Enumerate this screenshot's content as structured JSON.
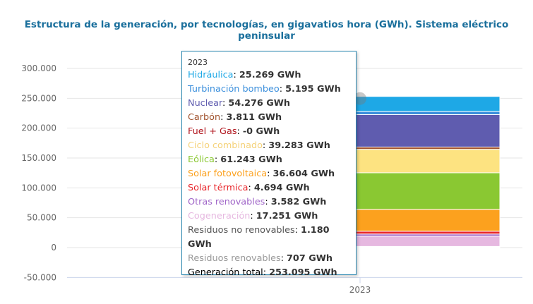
{
  "chart_data": {
    "type": "bar",
    "stacked": true,
    "title": "Estructura de la generación, por tecnologías, en gigavatios hora (GWh). Sistema eléctrico peninsular",
    "categories": [
      "2023"
    ],
    "ylim": [
      -50000,
      300000
    ],
    "yticks": [
      300000,
      250000,
      200000,
      150000,
      100000,
      50000,
      0,
      -50000
    ],
    "ytick_labels": [
      "300.000",
      "250.000",
      "200.000",
      "150.000",
      "100.000",
      "50.000",
      "0",
      "-50.000"
    ],
    "grid": true,
    "unit": "GWh",
    "series": [
      {
        "name": "Hidráulica",
        "values": [
          25269
        ],
        "label": "25.269 GWh",
        "color": "#1ea8e6"
      },
      {
        "name": "Turbinación bombeo",
        "values": [
          5195
        ],
        "label": "5.195 GWh",
        "color": "#3b8fdc"
      },
      {
        "name": "Nuclear",
        "values": [
          54276
        ],
        "label": "54.276 GWh",
        "color": "#5f5caf"
      },
      {
        "name": "Carbón",
        "values": [
          3811
        ],
        "label": "3.811 GWh",
        "color": "#a0522d"
      },
      {
        "name": "Fuel + Gas",
        "values": [
          0
        ],
        "label": "-0 GWh",
        "color": "#b0141c"
      },
      {
        "name": "Ciclo combinado",
        "values": [
          39283
        ],
        "label": "39.283 GWh",
        "color": "#fde381"
      },
      {
        "name": "Eólica",
        "values": [
          61243
        ],
        "label": "61.243 GWh",
        "color": "#8ac832"
      },
      {
        "name": "Solar fotovoltaica",
        "values": [
          36604
        ],
        "label": "36.604 GWh",
        "color": "#fca11e"
      },
      {
        "name": "Solar térmica",
        "values": [
          4694
        ],
        "label": "4.694 GWh",
        "color": "#e8262b"
      },
      {
        "name": "Otras renovables",
        "values": [
          3582
        ],
        "label": "3.582 GWh",
        "color": "#a066c8"
      },
      {
        "name": "Cogeneración",
        "values": [
          17251
        ],
        "label": "17.251 GWh",
        "color": "#e6b8e0"
      },
      {
        "name": "Residuos no renovables",
        "values": [
          1180
        ],
        "label": "1.180 GWh",
        "color": "#555555"
      },
      {
        "name": "Residuos renovables",
        "values": [
          707
        ],
        "label": "707 GWh",
        "color": "#999999"
      }
    ],
    "tooltip": {
      "header": "2023",
      "total_label": "Generación total",
      "total_value": "253.095 GWh"
    }
  }
}
